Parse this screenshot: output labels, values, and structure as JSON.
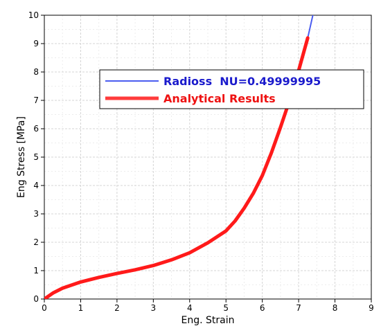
{
  "chart_data": {
    "type": "line",
    "title": "",
    "xlabel": "Eng. Strain",
    "ylabel": "Eng Stress [MPa]",
    "xlim": [
      0,
      9
    ],
    "ylim": [
      0,
      10
    ],
    "x_ticks": [
      "0",
      "1",
      "2",
      "3",
      "4",
      "5",
      "6",
      "7",
      "8",
      "9"
    ],
    "y_ticks": [
      "0",
      "1",
      "2",
      "3",
      "4",
      "5",
      "6",
      "7",
      "8",
      "9",
      "10"
    ],
    "grid": true,
    "legend_position": "upper-center",
    "series": [
      {
        "name": "Radioss  NU=0.49999995",
        "color": "#4a5cf0",
        "x": [
          0,
          0.25,
          0.5,
          1,
          1.5,
          2,
          2.5,
          3,
          3.5,
          4,
          4.5,
          5,
          5.25,
          5.5,
          5.75,
          6,
          6.25,
          6.5,
          6.75,
          7,
          7.25,
          7.4
        ],
        "y": [
          0,
          0.22,
          0.38,
          0.6,
          0.76,
          0.9,
          1.03,
          1.18,
          1.38,
          1.63,
          1.98,
          2.4,
          2.75,
          3.2,
          3.72,
          4.35,
          5.15,
          6.05,
          7.0,
          8.05,
          9.2,
          10.05
        ]
      },
      {
        "name": "Analytical Results",
        "color": "#ff1a1a",
        "x": [
          0,
          0.25,
          0.5,
          1,
          1.5,
          2,
          2.5,
          3,
          3.5,
          4,
          4.5,
          5,
          5.25,
          5.5,
          5.75,
          6,
          6.25,
          6.5,
          6.75,
          7,
          7.25
        ],
        "y": [
          0,
          0.22,
          0.38,
          0.6,
          0.76,
          0.9,
          1.03,
          1.18,
          1.38,
          1.63,
          1.98,
          2.4,
          2.75,
          3.2,
          3.72,
          4.35,
          5.15,
          6.05,
          7.0,
          8.05,
          9.2
        ]
      }
    ]
  }
}
